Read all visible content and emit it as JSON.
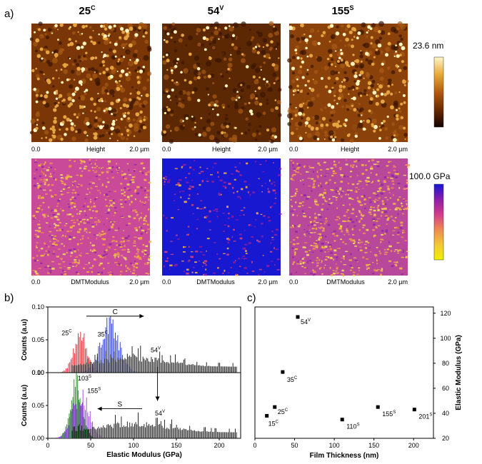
{
  "panel_labels": {
    "a": "a)",
    "b": "b)",
    "c": "c)"
  },
  "afm": {
    "samples": [
      {
        "base": "25",
        "sup": "C"
      },
      {
        "base": "54",
        "sup": "V"
      },
      {
        "base": "155",
        "sup": "S"
      }
    ],
    "height_row": {
      "channel": "Height",
      "scale_start": "0.0",
      "scale_end": "2.0 µm"
    },
    "modulus_row": {
      "channel": "DMTModulus",
      "scale_start": "0.0",
      "scale_end": "2.0 µm"
    },
    "height_colorbar": {
      "label": "23.6 nm",
      "colors": [
        "#fff6c8",
        "#e8a838",
        "#b45a10",
        "#6a2a00",
        "#120200"
      ]
    },
    "modulus_colorbar": {
      "label": "100.0 GPa",
      "colors": [
        "#1414d6",
        "#8c1ea8",
        "#d23c8c",
        "#ee8a50",
        "#f4c838",
        "#eef000"
      ]
    }
  },
  "chart_data": [
    {
      "type": "bar",
      "panel": "b-top",
      "title": "",
      "xlabel": "",
      "ylabel": "Counts (a.u)",
      "xlim": [
        0,
        225
      ],
      "ylim": [
        0,
        0.1
      ],
      "yticks": [
        "0.00",
        "0.05",
        "0.10"
      ],
      "annotations": [
        {
          "text": "C",
          "kind": "arrow-right",
          "from": 45,
          "to": 112,
          "y": 0.086
        },
        {
          "base": "25",
          "sup": "C",
          "x": 16,
          "y": 0.057
        },
        {
          "base": "35",
          "sup": "C",
          "x": 58,
          "y": 0.055
        },
        {
          "base": "54",
          "sup": "V",
          "x": 120,
          "y": 0.031
        }
      ],
      "series": [
        {
          "name": "25C",
          "color": "#e8202a",
          "mean": 38,
          "sd": 8,
          "peak": 0.056,
          "range": [
            14,
            62
          ]
        },
        {
          "name": "35C",
          "color": "#2030d8",
          "mean": 72,
          "sd": 11,
          "peak": 0.072,
          "range": [
            35,
            105
          ]
        },
        {
          "name": "54V",
          "color": "#111111",
          "kind": "broad",
          "range": [
            28,
            220
          ]
        }
      ]
    },
    {
      "type": "bar",
      "panel": "b-bottom",
      "title": "",
      "xlabel": "Elastic Modulus (GPa)",
      "ylabel": "Counts (a.u)",
      "xlim": [
        0,
        225
      ],
      "ylim": [
        0,
        0.1
      ],
      "xticks": [
        0,
        50,
        100,
        150,
        200
      ],
      "yticks": [
        "0.00",
        "0.05",
        "0.10"
      ],
      "annotations": [
        {
          "text": "S",
          "kind": "arrow-left",
          "from": 110,
          "to": 58,
          "y": 0.045
        },
        {
          "base": "103",
          "sup": "S",
          "x": 35,
          "y": 0.088
        },
        {
          "base": "155",
          "sup": "S",
          "x": 46,
          "y": 0.069
        },
        {
          "base": "54",
          "sup": "V",
          "x": 125,
          "y": 0.035
        }
      ],
      "series": [
        {
          "name": "103S",
          "color": "#1e8a1e",
          "mean": 33,
          "sd": 7,
          "peak": 0.082,
          "range": [
            12,
            55
          ]
        },
        {
          "name": "155S",
          "color": "#9a40e6",
          "mean": 38,
          "sd": 10,
          "peak": 0.064,
          "range": [
            0,
            75
          ]
        },
        {
          "name": "54V",
          "color": "#111111",
          "kind": "broad",
          "range": [
            28,
            220
          ]
        }
      ],
      "vertical_arrow": {
        "x": 128,
        "from": 0.1,
        "to": 0.057
      }
    },
    {
      "type": "scatter",
      "panel": "c",
      "title": "",
      "xlabel": "Film Thickness (nm)",
      "ylabel": "Elastic Modulus (GPa)",
      "xlim": [
        0,
        225
      ],
      "ylim": [
        20,
        125
      ],
      "xticks": [
        0,
        50,
        100,
        150,
        200
      ],
      "yticks": [
        20,
        40,
        60,
        80,
        100,
        120
      ],
      "y_axis_side": "right",
      "points": [
        {
          "x": 15,
          "y": 38,
          "base": "15",
          "sup": "C"
        },
        {
          "x": 25,
          "y": 45,
          "base": "25",
          "sup": "C"
        },
        {
          "x": 35,
          "y": 73,
          "base": "35",
          "sup": "C"
        },
        {
          "x": 54,
          "y": 117,
          "base": "54",
          "sup": "V"
        },
        {
          "x": 110,
          "y": 35,
          "base": "110",
          "sup": "S"
        },
        {
          "x": 155,
          "y": 45,
          "base": "155",
          "sup": "S"
        },
        {
          "x": 201,
          "y": 43,
          "base": "201",
          "sup": "S"
        }
      ]
    }
  ]
}
